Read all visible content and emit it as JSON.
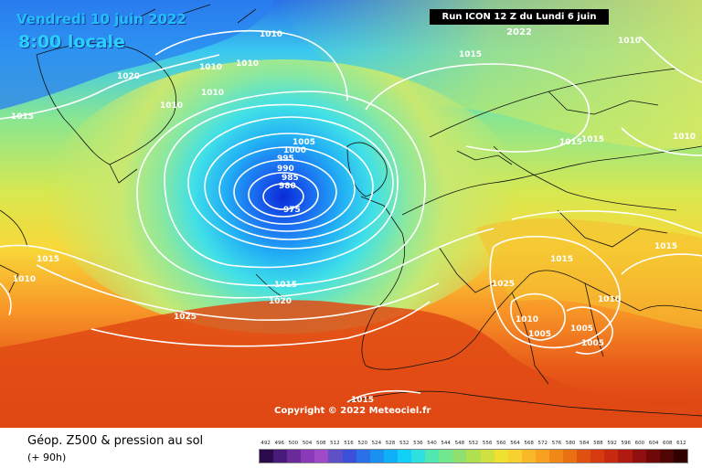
{
  "header": {
    "date": "Vendredi 10 juin 2022",
    "time": "8:00 locale",
    "run": "Run ICON 12 Z du Lundi 6 juin 2022"
  },
  "copyright": "Copyright © 2022 Meteociel.fr",
  "isobar_labels": [
    "1010",
    "1010",
    "1010",
    "1020",
    "1015",
    "1010",
    "1010",
    "1010",
    "1015",
    "1010",
    "1015",
    "1015",
    "1010",
    "1005",
    "1000",
    "995",
    "990",
    "985",
    "980",
    "975",
    "1015",
    "1010",
    "1015",
    "1025",
    "1005",
    "1015",
    "1020",
    "1025",
    "1015",
    "1010",
    "1010",
    "1005",
    "1005",
    "1015"
  ],
  "legend": {
    "title": "Géop. Z500 & pression au sol",
    "subtitle": "(+ 90h)",
    "scale_values": [
      "492",
      "496",
      "500",
      "504",
      "508",
      "512",
      "516",
      "520",
      "524",
      "528",
      "532",
      "536",
      "540",
      "544",
      "548",
      "552",
      "556",
      "560",
      "564",
      "568",
      "572",
      "576",
      "580",
      "584",
      "588",
      "592",
      "596",
      "600",
      "604",
      "608",
      "612"
    ],
    "scale_colors": [
      "#2a0a4a",
      "#4a1a7a",
      "#6a2a9a",
      "#8a3ab8",
      "#a04ac8",
      "#6050c8",
      "#3a50d8",
      "#2a70e8",
      "#1a90f0",
      "#10b0f8",
      "#10d0f8",
      "#30e0e0",
      "#50e8b0",
      "#70e890",
      "#90e070",
      "#b0e050",
      "#d0e040",
      "#f0e030",
      "#f8d030",
      "#f8b828",
      "#f8a020",
      "#f08818",
      "#e87010",
      "#e05010",
      "#d83a10",
      "#c82a10",
      "#b01a10",
      "#901010",
      "#700808",
      "#500404",
      "#300000"
    ]
  }
}
